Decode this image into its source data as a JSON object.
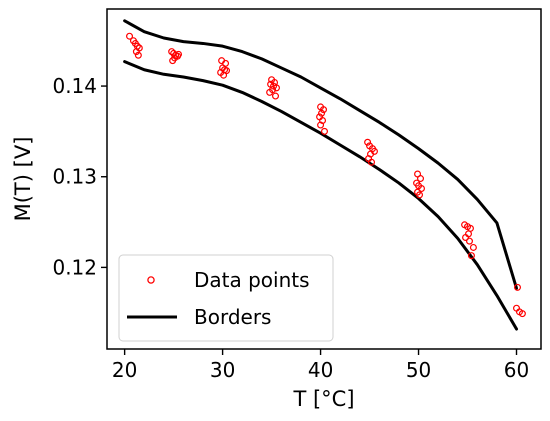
{
  "chart_data": {
    "type": "scatter",
    "title": "",
    "xlabel": "T [$^\\circ$C]",
    "xlabel_display": "T [°C]",
    "ylabel": "M(T) [V]",
    "xlim": [
      18.2,
      62.5
    ],
    "ylim": [
      0.111,
      0.1485
    ],
    "xticks": [
      20,
      30,
      40,
      50,
      60
    ],
    "yticks": [
      0.12,
      0.13,
      0.14
    ],
    "ytick_labels": [
      "0.12",
      "0.13",
      "0.14"
    ],
    "grid": false,
    "legend": {
      "placement": "bottom-left",
      "entries": [
        {
          "label": "Data points",
          "series": "data_points"
        },
        {
          "label": "Borders",
          "series": "borders"
        }
      ]
    },
    "colors": {
      "data_points": "#ff0000",
      "borders": "#000000",
      "axes": "#000000",
      "legend_frame": "#d0d0d0"
    },
    "series": [
      {
        "name": "Data points",
        "kind": "scatter",
        "marker": "open-circle",
        "points": [
          [
            20.5,
            0.1455
          ],
          [
            20.9,
            0.145
          ],
          [
            21.1,
            0.1447
          ],
          [
            21.3,
            0.1444
          ],
          [
            21.5,
            0.1442
          ],
          [
            21.2,
            0.1438
          ],
          [
            21.4,
            0.1434
          ],
          [
            24.8,
            0.1438
          ],
          [
            25.0,
            0.1436
          ],
          [
            25.2,
            0.1434
          ],
          [
            25.4,
            0.1433
          ],
          [
            25.5,
            0.1435
          ],
          [
            25.1,
            0.1431
          ],
          [
            24.9,
            0.1428
          ],
          [
            29.9,
            0.1428
          ],
          [
            30.3,
            0.1425
          ],
          [
            30.0,
            0.142
          ],
          [
            30.2,
            0.1418
          ],
          [
            30.4,
            0.1417
          ],
          [
            29.8,
            0.1415
          ],
          [
            30.1,
            0.1412
          ],
          [
            35.0,
            0.1407
          ],
          [
            35.3,
            0.1404
          ],
          [
            34.9,
            0.1402
          ],
          [
            35.2,
            0.14
          ],
          [
            35.5,
            0.1398
          ],
          [
            35.1,
            0.1396
          ],
          [
            34.8,
            0.1393
          ],
          [
            35.4,
            0.1389
          ],
          [
            40.0,
            0.1377
          ],
          [
            40.3,
            0.1374
          ],
          [
            40.1,
            0.137
          ],
          [
            39.9,
            0.1366
          ],
          [
            40.2,
            0.1362
          ],
          [
            40.0,
            0.1357
          ],
          [
            40.4,
            0.135
          ],
          [
            44.8,
            0.1338
          ],
          [
            45.0,
            0.1334
          ],
          [
            45.3,
            0.1331
          ],
          [
            45.5,
            0.1328
          ],
          [
            45.1,
            0.1325
          ],
          [
            44.9,
            0.132
          ],
          [
            45.2,
            0.1316
          ],
          [
            49.9,
            0.1303
          ],
          [
            50.2,
            0.1298
          ],
          [
            49.8,
            0.1293
          ],
          [
            50.0,
            0.129
          ],
          [
            50.3,
            0.1287
          ],
          [
            49.9,
            0.1283
          ],
          [
            50.1,
            0.128
          ],
          [
            54.7,
            0.1247
          ],
          [
            55.0,
            0.1245
          ],
          [
            55.3,
            0.1243
          ],
          [
            55.1,
            0.1237
          ],
          [
            54.8,
            0.1233
          ],
          [
            55.2,
            0.1229
          ],
          [
            55.6,
            0.1222
          ],
          [
            55.4,
            0.1213
          ],
          [
            60.1,
            0.1178
          ],
          [
            60.0,
            0.1155
          ],
          [
            60.3,
            0.1151
          ],
          [
            60.6,
            0.1149
          ]
        ]
      },
      {
        "name": "Borders",
        "kind": "line",
        "lines": [
          {
            "edge": "upper",
            "points": [
              [
                20.0,
                0.1472
              ],
              [
                22.0,
                0.146
              ],
              [
                24.0,
                0.1453
              ],
              [
                26.0,
                0.1449
              ],
              [
                28.0,
                0.1447
              ],
              [
                30.0,
                0.1444
              ],
              [
                32.0,
                0.1438
              ],
              [
                34.0,
                0.143
              ],
              [
                36.0,
                0.142
              ],
              [
                38.0,
                0.141
              ],
              [
                40.0,
                0.1398
              ],
              [
                42.0,
                0.1386
              ],
              [
                44.0,
                0.1373
              ],
              [
                46.0,
                0.136
              ],
              [
                48.0,
                0.1346
              ],
              [
                50.0,
                0.1331
              ],
              [
                52.0,
                0.1315
              ],
              [
                54.0,
                0.1297
              ],
              [
                56.0,
                0.1275
              ],
              [
                58.0,
                0.1249
              ],
              [
                60.0,
                0.1177
              ]
            ]
          },
          {
            "edge": "lower",
            "points": [
              [
                20.0,
                0.1427
              ],
              [
                22.0,
                0.1418
              ],
              [
                24.0,
                0.1413
              ],
              [
                26.0,
                0.141
              ],
              [
                28.0,
                0.1406
              ],
              [
                30.0,
                0.1401
              ],
              [
                32.0,
                0.1393
              ],
              [
                34.0,
                0.1383
              ],
              [
                36.0,
                0.1372
              ],
              [
                38.0,
                0.136
              ],
              [
                40.0,
                0.1348
              ],
              [
                42.0,
                0.1335
              ],
              [
                44.0,
                0.1322
              ],
              [
                46.0,
                0.1308
              ],
              [
                48.0,
                0.1293
              ],
              [
                50.0,
                0.1276
              ],
              [
                52.0,
                0.1256
              ],
              [
                54.0,
                0.1232
              ],
              [
                56.0,
                0.1203
              ],
              [
                58.0,
                0.1169
              ],
              [
                60.0,
                0.1132
              ]
            ]
          }
        ]
      }
    ]
  }
}
